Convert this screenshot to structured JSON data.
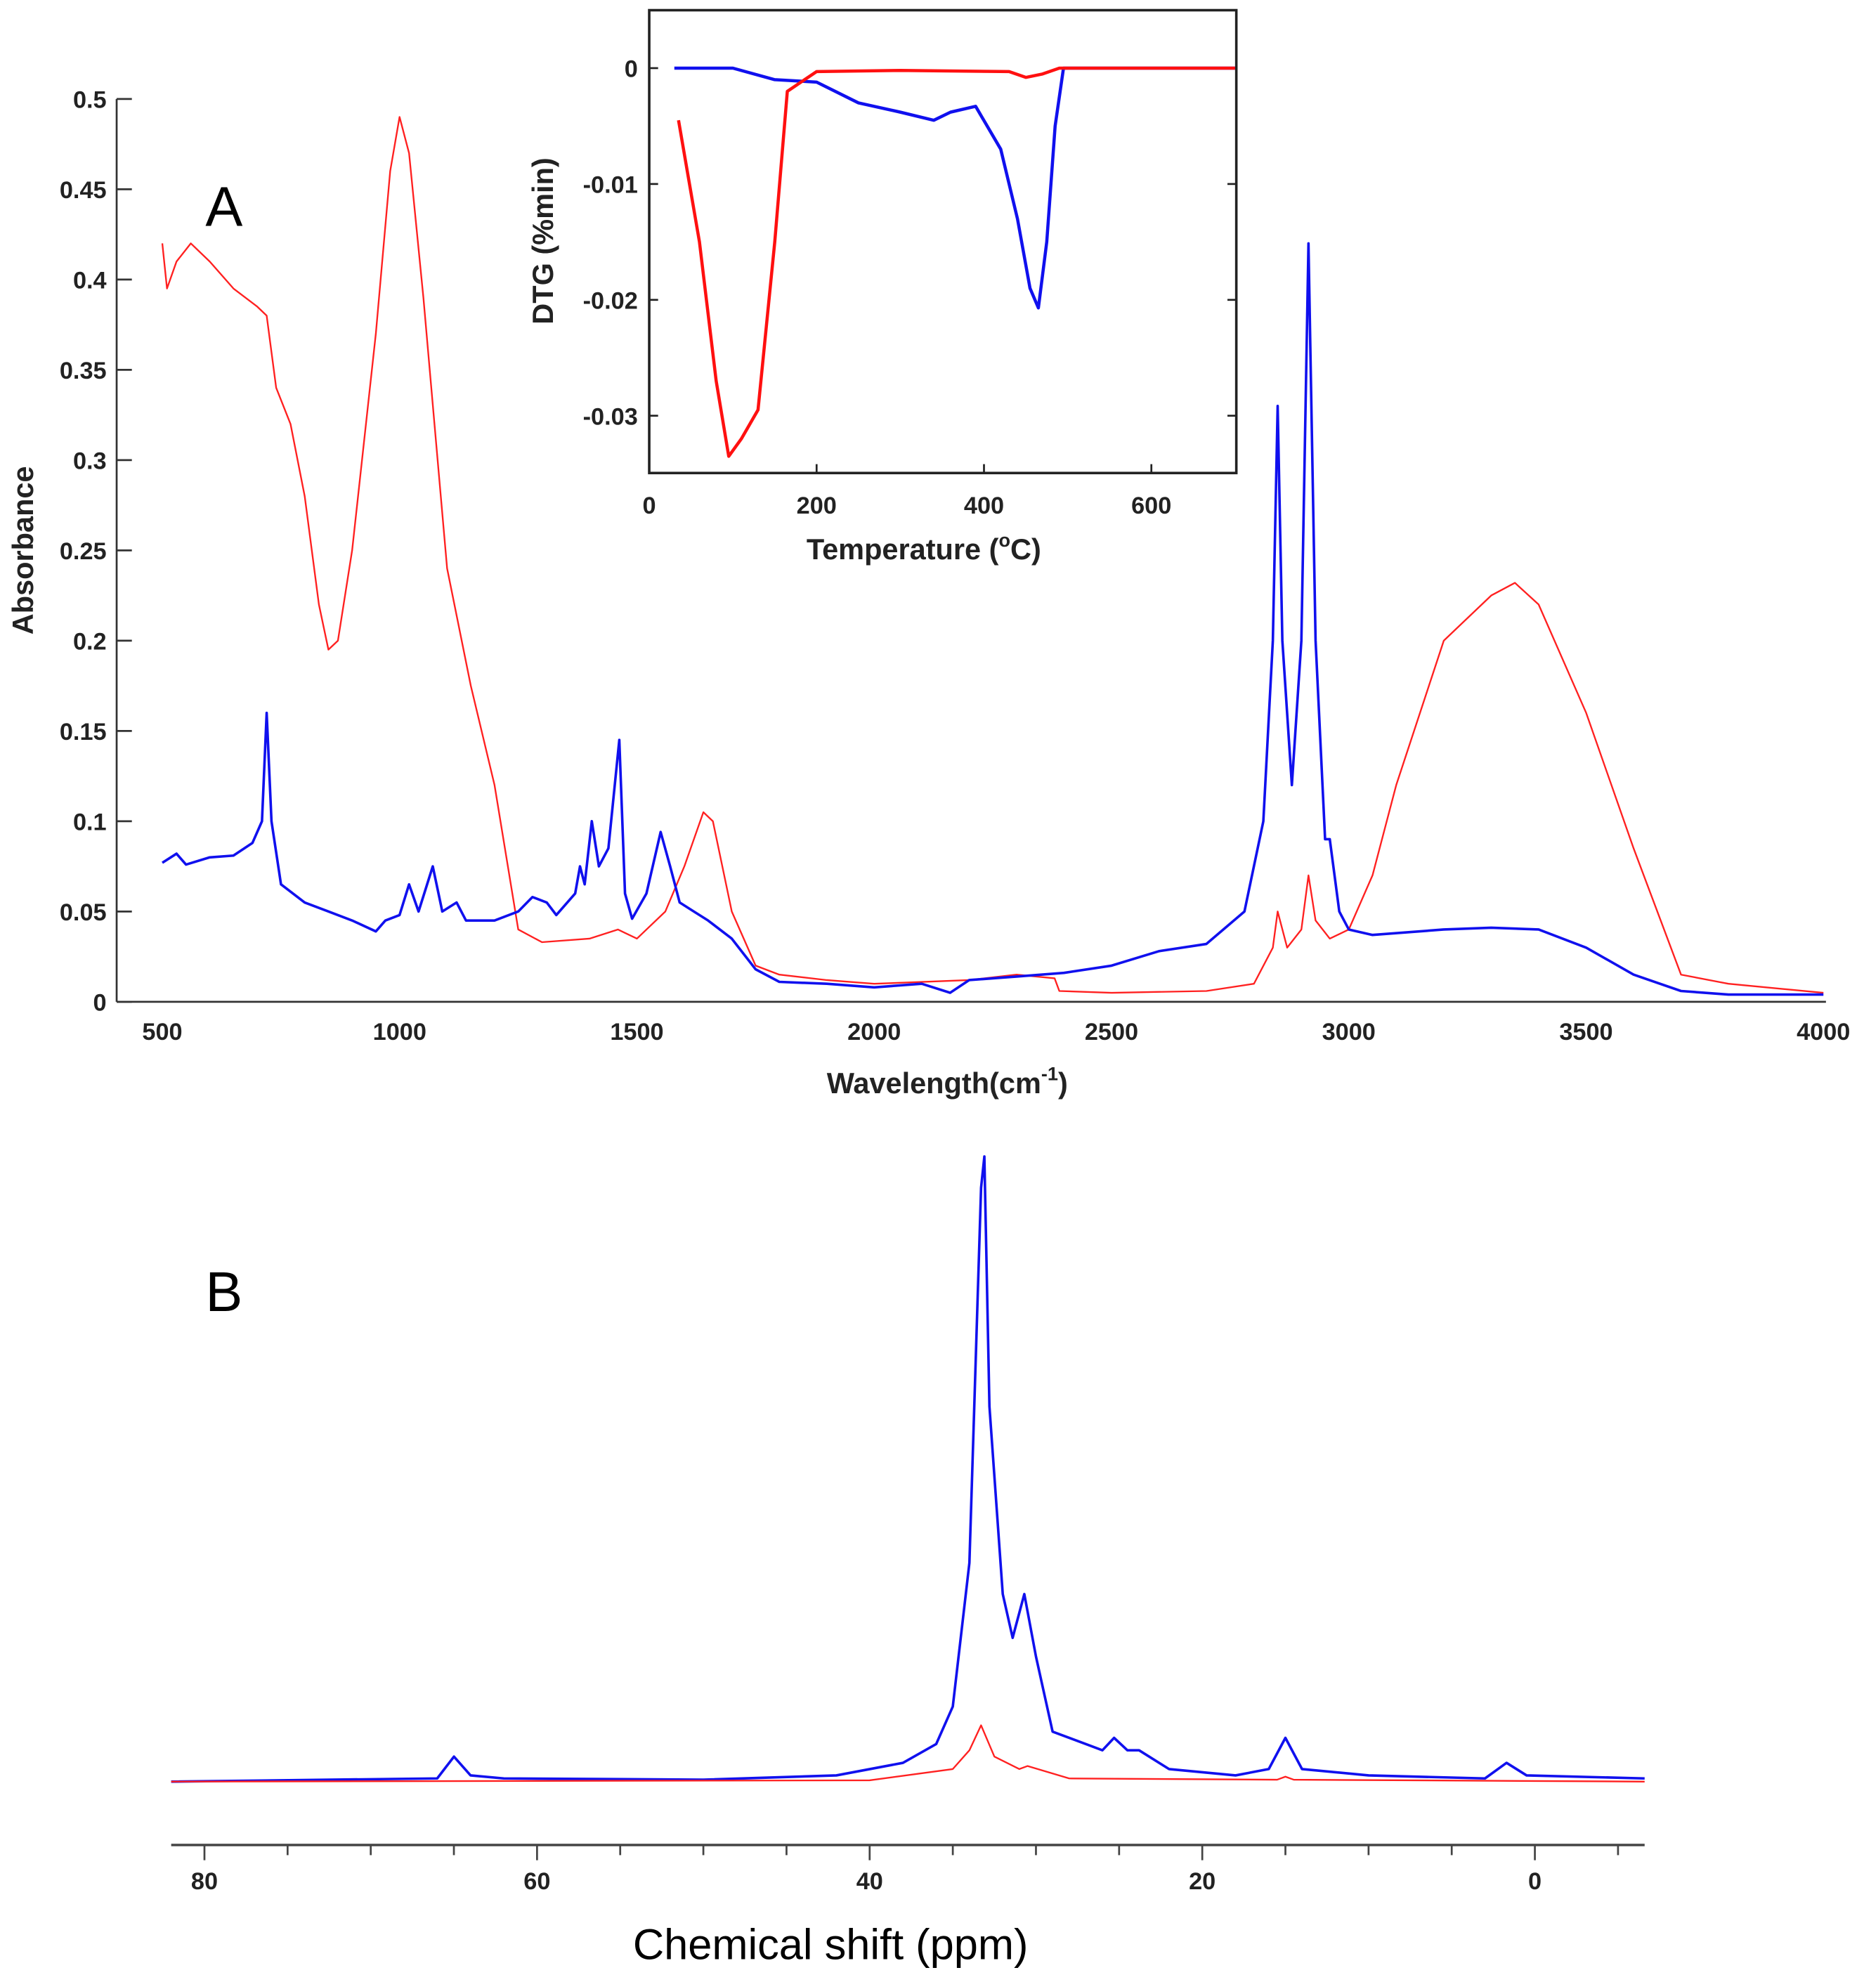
{
  "chart_data": [
    {
      "id": "ftir",
      "type": "line",
      "panel_label": "A",
      "xlabel": "Wavelength(cm",
      "xlabel_sup": "-1",
      "xlabel_end": ")",
      "ylabel": "Absorbance",
      "xlim": [
        500,
        4000
      ],
      "ylim": [
        0,
        0.5
      ],
      "xticks": [
        "500",
        "1000",
        "1500",
        "2000",
        "2500",
        "3000",
        "3500",
        "4000"
      ],
      "yticks": [
        "0",
        "0.05",
        "0.1",
        "0.15",
        "0.2",
        "0.25",
        "0.3",
        "0.35",
        "0.4",
        "0.45",
        "0.5"
      ],
      "series": [
        {
          "name": "red",
          "color": "#ff2020",
          "x": [
            500,
            510,
            530,
            560,
            600,
            650,
            700,
            720,
            740,
            770,
            800,
            830,
            850,
            870,
            900,
            950,
            980,
            1000,
            1020,
            1050,
            1100,
            1150,
            1200,
            1250,
            1300,
            1400,
            1460,
            1500,
            1560,
            1600,
            1640,
            1660,
            1700,
            1750,
            1800,
            1900,
            2000,
            2200,
            2300,
            2380,
            2390,
            2500,
            2700,
            2800,
            2840,
            2850,
            2870,
            2900,
            2915,
            2930,
            2960,
            3000,
            3050,
            3100,
            3200,
            3300,
            3350,
            3400,
            3500,
            3600,
            3650,
            3700,
            3800,
            4000
          ],
          "y": [
            0.42,
            0.395,
            0.41,
            0.42,
            0.41,
            0.395,
            0.385,
            0.38,
            0.34,
            0.32,
            0.28,
            0.22,
            0.195,
            0.2,
            0.25,
            0.37,
            0.46,
            0.49,
            0.47,
            0.39,
            0.24,
            0.175,
            0.12,
            0.04,
            0.033,
            0.035,
            0.04,
            0.035,
            0.05,
            0.075,
            0.105,
            0.1,
            0.05,
            0.02,
            0.015,
            0.012,
            0.01,
            0.012,
            0.015,
            0.013,
            0.006,
            0.005,
            0.006,
            0.01,
            0.03,
            0.05,
            0.03,
            0.04,
            0.07,
            0.045,
            0.035,
            0.04,
            0.07,
            0.12,
            0.2,
            0.225,
            0.232,
            0.22,
            0.16,
            0.085,
            0.05,
            0.015,
            0.01,
            0.005
          ]
        },
        {
          "name": "blue",
          "color": "#1010ee",
          "x": [
            500,
            530,
            550,
            600,
            650,
            690,
            710,
            720,
            730,
            750,
            800,
            850,
            900,
            950,
            970,
            1000,
            1020,
            1040,
            1070,
            1090,
            1120,
            1140,
            1200,
            1250,
            1280,
            1310,
            1330,
            1370,
            1380,
            1390,
            1405,
            1420,
            1440,
            1463,
            1475,
            1490,
            1520,
            1550,
            1570,
            1590,
            1620,
            1650,
            1700,
            1750,
            1800,
            1900,
            2000,
            2100,
            2160,
            2200,
            2300,
            2400,
            2500,
            2600,
            2700,
            2780,
            2820,
            2840,
            2850,
            2860,
            2880,
            2900,
            2915,
            2930,
            2950,
            2960,
            2980,
            3000,
            3050,
            3200,
            3300,
            3400,
            3500,
            3600,
            3700,
            3800,
            4000
          ],
          "y": [
            0.077,
            0.082,
            0.076,
            0.08,
            0.081,
            0.088,
            0.1,
            0.16,
            0.1,
            0.065,
            0.055,
            0.05,
            0.045,
            0.039,
            0.045,
            0.048,
            0.065,
            0.05,
            0.075,
            0.05,
            0.055,
            0.045,
            0.045,
            0.05,
            0.058,
            0.055,
            0.048,
            0.06,
            0.075,
            0.065,
            0.1,
            0.075,
            0.085,
            0.145,
            0.06,
            0.046,
            0.06,
            0.094,
            0.075,
            0.055,
            0.05,
            0.045,
            0.035,
            0.018,
            0.011,
            0.01,
            0.008,
            0.01,
            0.005,
            0.012,
            0.014,
            0.016,
            0.02,
            0.028,
            0.032,
            0.05,
            0.1,
            0.2,
            0.33,
            0.2,
            0.12,
            0.2,
            0.42,
            0.2,
            0.09,
            0.09,
            0.05,
            0.04,
            0.037,
            0.04,
            0.041,
            0.04,
            0.03,
            0.015,
            0.006,
            0.004,
            0.004
          ]
        }
      ]
    },
    {
      "id": "dtg",
      "type": "line",
      "xlabel": "Temperature (",
      "xlabel_sup": "o",
      "xlabel_end": "C)",
      "ylabel": "DTG (%min)",
      "xlim": [
        0,
        700
      ],
      "ylim": [
        -0.035,
        0.005
      ],
      "xticks": [
        "0",
        "200",
        "400",
        "600"
      ],
      "yticks": [
        "0",
        "-0.01",
        "-0.02",
        "-0.03"
      ],
      "series": [
        {
          "name": "blue",
          "color": "#1010ee",
          "x": [
            30,
            100,
            150,
            200,
            250,
            300,
            340,
            360,
            390,
            420,
            440,
            455,
            465,
            475,
            485,
            495,
            700
          ],
          "y": [
            0,
            0,
            -0.001,
            -0.0012,
            -0.003,
            -0.0038,
            -0.0045,
            -0.0038,
            -0.0033,
            -0.007,
            -0.013,
            -0.019,
            -0.0207,
            -0.015,
            -0.005,
            0,
            0
          ]
        },
        {
          "name": "red",
          "color": "#ff1010",
          "x": [
            35,
            60,
            80,
            95,
            110,
            130,
            150,
            165,
            200,
            300,
            430,
            450,
            470,
            490,
            700
          ],
          "y": [
            -0.0045,
            -0.015,
            -0.027,
            -0.0335,
            -0.032,
            -0.0295,
            -0.015,
            -0.002,
            -0.0003,
            -0.0002,
            -0.0003,
            -0.0008,
            -0.0005,
            0,
            0
          ]
        }
      ]
    },
    {
      "id": "nmr",
      "type": "line",
      "panel_label": "B",
      "xlabel": "Chemical shift (ppm)",
      "xlim": [
        82,
        -6.6
      ],
      "ylim": [
        0,
        1
      ],
      "xticks": [
        "80",
        "60",
        "40",
        "20",
        "0"
      ],
      "series": [
        {
          "name": "blue",
          "color": "#1010ee",
          "x": [
            82,
            66,
            65,
            64,
            62,
            50,
            42,
            38,
            36,
            35,
            34,
            33.3,
            33.1,
            32.8,
            32,
            31.4,
            30.7,
            30,
            29,
            27,
            26,
            25.3,
            24.5,
            23.8,
            22,
            18,
            16,
            15,
            14,
            10,
            3,
            1.7,
            0.5,
            -6.6
          ],
          "y": [
            0,
            0.005,
            0.04,
            0.01,
            0.005,
            0.003,
            0.01,
            0.03,
            0.06,
            0.12,
            0.35,
            0.95,
            1.0,
            0.6,
            0.3,
            0.23,
            0.3,
            0.2,
            0.08,
            0.06,
            0.05,
            0.07,
            0.05,
            0.05,
            0.02,
            0.01,
            0.02,
            0.07,
            0.02,
            0.01,
            0.005,
            0.03,
            0.01,
            0.005
          ]
        },
        {
          "name": "red",
          "color": "#ff2020",
          "x": [
            82,
            40,
            35,
            34,
            33.3,
            32.5,
            31,
            30.5,
            28,
            15.5,
            15,
            14.5,
            -6.6
          ],
          "y": [
            0,
            0.002,
            0.02,
            0.05,
            0.09,
            0.04,
            0.02,
            0.025,
            0.005,
            0.003,
            0.008,
            0.003,
            0
          ]
        }
      ]
    }
  ]
}
